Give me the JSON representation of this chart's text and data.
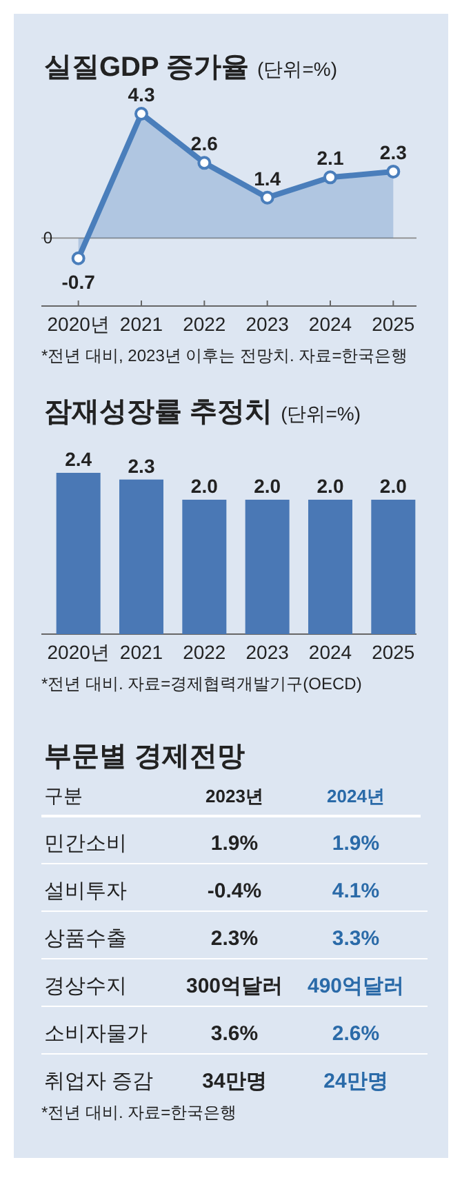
{
  "chart_data": [
    {
      "type": "area",
      "title": "실질GDP 증가율",
      "subtitle": "(단위=%)",
      "categories": [
        "2020년",
        "2021",
        "2022",
        "2023",
        "2024",
        "2025"
      ],
      "series": [
        {
          "color": "#4a7ebb",
          "values": [
            -0.7,
            4.3,
            2.6,
            1.4,
            2.1,
            2.3
          ]
        }
      ],
      "data_labels": true,
      "ref_lines": [
        {
          "axis": "y",
          "value": 0,
          "label": "0"
        }
      ],
      "marker": "circle",
      "annotations": [
        "*전년 대비, 2023년 이후는 전망치. 자료=한국은행"
      ]
    },
    {
      "type": "bar",
      "title": "잠재성장률 추정치",
      "subtitle": "(단위=%)",
      "categories": [
        "2020년",
        "2021",
        "2022",
        "2023",
        "2024",
        "2025"
      ],
      "series": [
        {
          "color": "#4a78b5",
          "values": [
            2.4,
            2.3,
            2.0,
            2.0,
            2.0,
            2.0
          ],
          "value_labels": [
            "2.4",
            "2.3",
            "2.0",
            "2.0",
            "2.0",
            "2.0"
          ]
        }
      ],
      "annotations": [
        "*전년 대비. 자료=경제협력개발기구(OECD)"
      ]
    },
    {
      "type": "other",
      "title": "부문별 경제전망",
      "xlabel": "구분",
      "categories": [
        "민간소비",
        "설비투자",
        "상품수출",
        "경상수지",
        "소비자물가",
        "취업자 증감"
      ],
      "series": [
        {
          "name": "2023년",
          "color": "#222222",
          "values": [
            1.9,
            -0.4,
            2.3,
            300,
            3.6,
            34
          ],
          "value_labels": [
            "1.9%",
            "-0.4%",
            "2.3%",
            "300억달러",
            "3.6%",
            "34만명"
          ]
        },
        {
          "name": "2024년",
          "color": "#2a6aa8",
          "values": [
            1.9,
            4.1,
            3.3,
            490,
            2.6,
            24
          ],
          "value_labels": [
            "1.9%",
            "4.1%",
            "3.3%",
            "490억달러",
            "2.6%",
            "24만명"
          ]
        }
      ],
      "annotations": [
        "*전년 대비. 자료=한국은행"
      ]
    }
  ]
}
